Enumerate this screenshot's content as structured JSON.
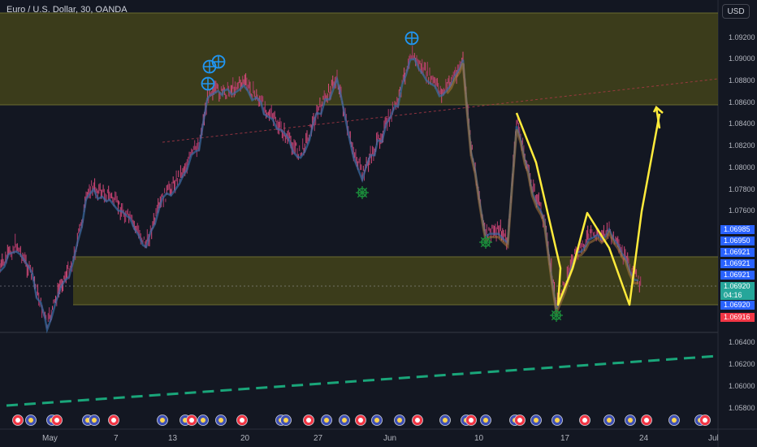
{
  "symbol_title": "Euro / U.S. Dollar, 30, OANDA",
  "currency_button": "USD",
  "colors": {
    "background": "#131722",
    "zone": "#4a4a1a",
    "price_bar_blue": "#2962ff",
    "price_bar_green": "#26a69a",
    "price_bar_red": "#f23645",
    "yellow_line": "#ffeb3b",
    "teal_dash": "#1aa67a"
  },
  "price_axis": {
    "labels": [
      "1.09200",
      "1.09000",
      "1.08800",
      "1.08600",
      "1.08400",
      "1.08200",
      "1.08000",
      "1.07800",
      "1.07600",
      "1.06400",
      "1.06200",
      "1.06000",
      "1.05800"
    ]
  },
  "price_badges": {
    "badge_1": "1.06985",
    "badge_2": "1.06950",
    "badge_3": "1.06921",
    "badge_4": "1.06921",
    "badge_5": "1.06921",
    "current_price": "1.06920",
    "countdown": "04:16",
    "badge_8": "1.06920",
    "badge_9": "1.06916"
  },
  "time_axis": {
    "labels": [
      "May",
      "7",
      "13",
      "20",
      "27",
      "Jun",
      "10",
      "17",
      "24",
      "Jul"
    ]
  },
  "markers": {
    "crosshair_icon": "target-cross-icon",
    "ship_wheel_icon": "ship-wheel-icon",
    "event_icon": "economic-event-flag-icon"
  }
}
